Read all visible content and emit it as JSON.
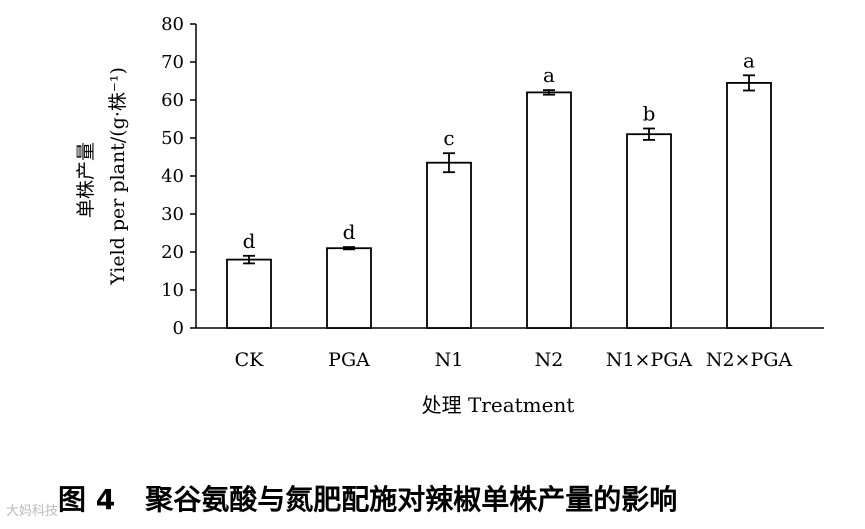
{
  "chart_data": {
    "type": "bar",
    "categories": [
      "CK",
      "PGA",
      "N1",
      "N2",
      "N1×PGA",
      "N2×PGA"
    ],
    "values": [
      18,
      21,
      43.5,
      62,
      51,
      64.5
    ],
    "errors": [
      1,
      0.3,
      2.5,
      0.6,
      1.5,
      2
    ],
    "letters": [
      "d",
      "d",
      "c",
      "a",
      "b",
      "a"
    ],
    "ylabel_cn": "单株产量",
    "ylabel_en": "Yield per plant/(g·株⁻¹)",
    "xlabel": "处理 Treatment",
    "ylim": [
      0,
      80
    ],
    "yticks": [
      0,
      10,
      20,
      30,
      40,
      50,
      60,
      70,
      80
    ],
    "grid": false,
    "bar_fill": "#ffffff",
    "bar_stroke": "#000000"
  },
  "caption": {
    "figure_number": "图 4",
    "title": "聚谷氨酸与氮肥配施对辣椒单株产量的影响"
  },
  "watermark": "大妈科技"
}
